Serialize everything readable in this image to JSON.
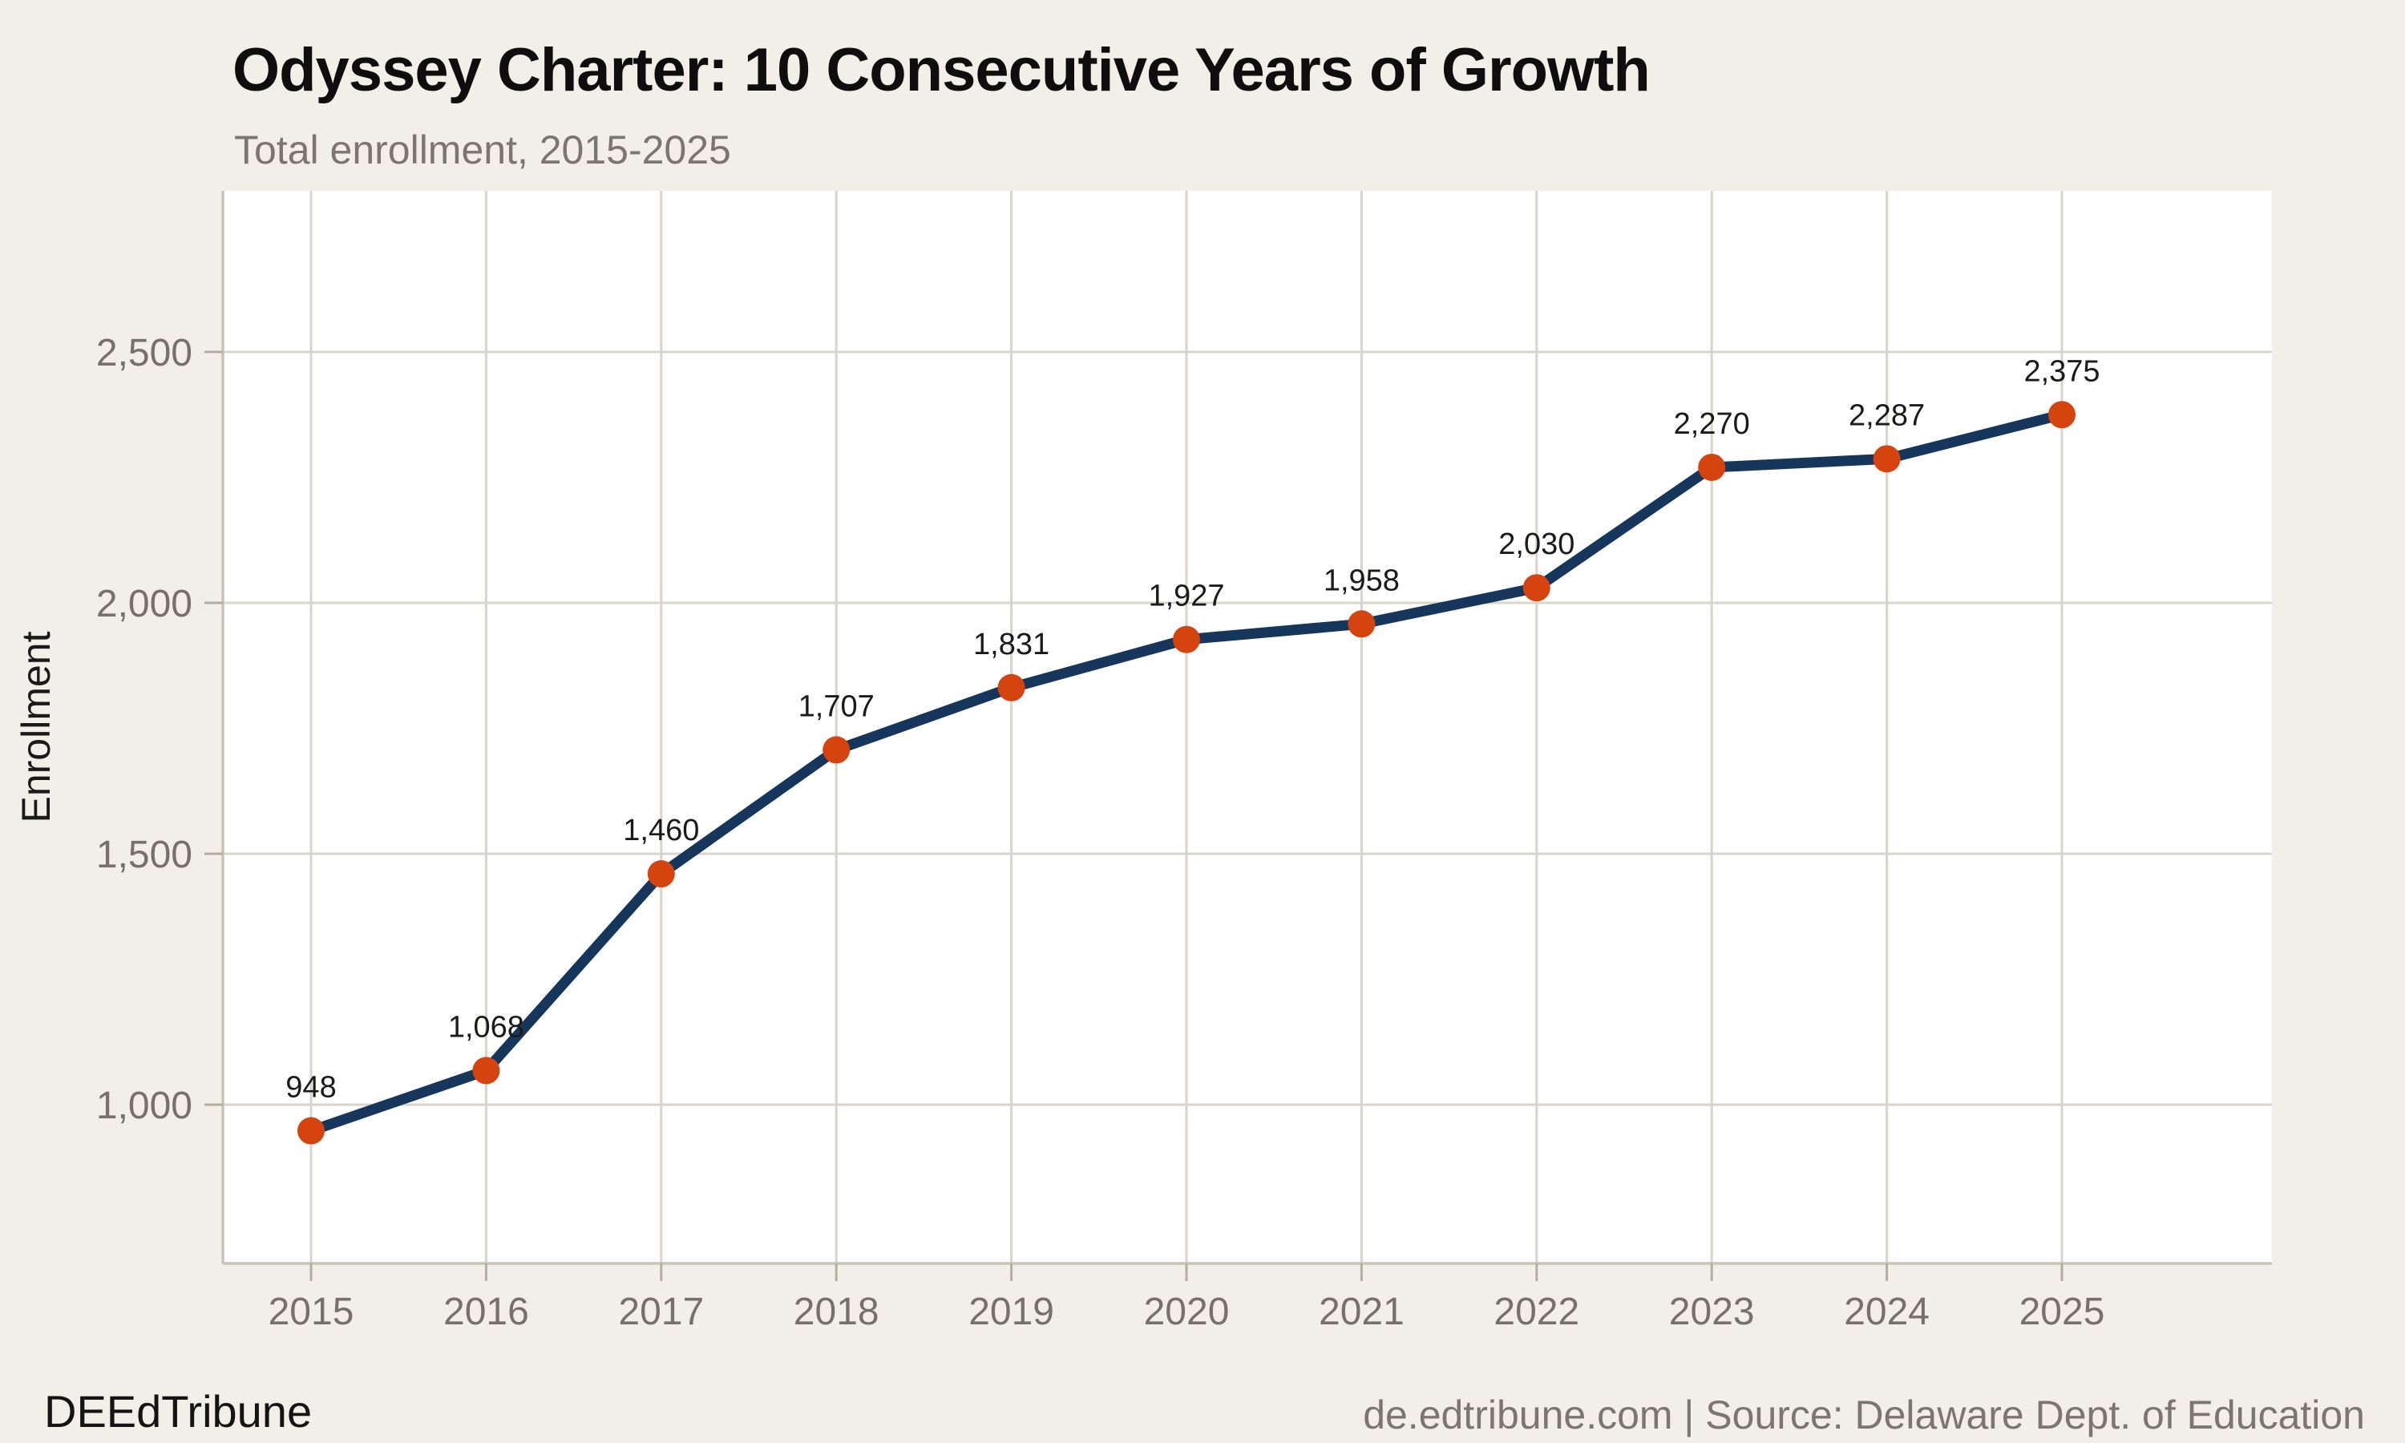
{
  "header": {
    "title": "Odyssey Charter: 10 Consecutive Years of Growth",
    "subtitle": "Total enrollment, 2015-2025"
  },
  "footer": {
    "brand": "DEEdTribune",
    "source": "de.edtribune.com | Source: Delaware Dept. of Education"
  },
  "chart_data": {
    "type": "line",
    "title": "Odyssey Charter: 10 Consecutive Years of Growth",
    "subtitle": "Total enrollment, 2015-2025",
    "xlabel": "",
    "ylabel": "Enrollment",
    "x": [
      2015,
      2016,
      2017,
      2018,
      2019,
      2020,
      2021,
      2022,
      2023,
      2024,
      2025
    ],
    "series": [
      {
        "name": "Total enrollment",
        "values": [
          948,
          1068,
          1460,
          1707,
          1831,
          1927,
          1958,
          2030,
          2270,
          2287,
          2375
        ]
      }
    ],
    "point_labels": [
      "948",
      "1,068",
      "1,460",
      "1,707",
      "1,831",
      "1,927",
      "1,958",
      "2,030",
      "2,270",
      "2,287",
      "2,375"
    ],
    "yticks": [
      1000,
      1500,
      2000,
      2500
    ],
    "ytick_labels": [
      "1,000",
      "1,500",
      "2,000",
      "2,500"
    ],
    "ylim": [
      684,
      2821
    ],
    "grid": true,
    "legend": "none",
    "colors": {
      "line": "#16365c",
      "marker": "#d5430f",
      "grid": "#d8d4ca",
      "axis": "#c8c3b8",
      "tick": "#b3aea4",
      "tick_label": "#76726a",
      "point_label": "#1a1a1a",
      "axis_title": "#1a1a1a",
      "background": "#f2efe8",
      "plot_background": "#ffffff"
    }
  }
}
